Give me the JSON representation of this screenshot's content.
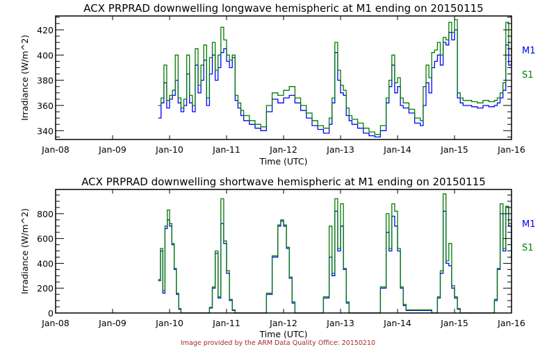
{
  "colors": {
    "M1": "#0000ff",
    "S1": "#007a00",
    "credit": "#a52a2a",
    "axis": "#000000"
  },
  "credit": "Image provided by the ARM Data Quality Office: 20150210",
  "chart_data": [
    {
      "type": "line",
      "title": "ACX PRPRAD downwelling longwave hemispheric at M1 ending on 20150115",
      "xlabel": "Time (UTC)",
      "ylabel": "Irradiance (W/m^2)",
      "xlim": [
        8,
        16
      ],
      "ylim": [
        333,
        431
      ],
      "x_ticks": [
        8,
        9,
        10,
        11,
        12,
        13,
        14,
        15,
        16
      ],
      "x_tick_labels": [
        "Jan-08",
        "Jan-09",
        "Jan-10",
        "Jan-11",
        "Jan-12",
        "Jan-13",
        "Jan-14",
        "Jan-15",
        "Jan-16"
      ],
      "y_ticks": [
        340,
        360,
        380,
        400,
        420
      ],
      "y_tick_labels": [
        "340",
        "360",
        "380",
        "400",
        "420"
      ],
      "y_minor_step": 5,
      "legend": [
        "M1",
        "S1"
      ],
      "legend_position": "right",
      "series": [
        {
          "name": "M1",
          "x": [
            9.8,
            9.85,
            9.9,
            9.95,
            10.0,
            10.05,
            10.1,
            10.15,
            10.2,
            10.25,
            10.3,
            10.35,
            10.4,
            10.45,
            10.5,
            10.55,
            10.6,
            10.65,
            10.7,
            10.75,
            10.8,
            10.85,
            10.9,
            10.95,
            11.0,
            11.05,
            11.1,
            11.15,
            11.2,
            11.25,
            11.3,
            11.4,
            11.5,
            11.6,
            11.7,
            11.8,
            11.9,
            12.0,
            12.1,
            12.2,
            12.3,
            12.4,
            12.5,
            12.6,
            12.7,
            12.8,
            12.85,
            12.9,
            12.95,
            13.0,
            13.05,
            13.1,
            13.15,
            13.2,
            13.3,
            13.4,
            13.5,
            13.6,
            13.7,
            13.8,
            13.85,
            13.9,
            13.95,
            14.0,
            14.05,
            14.1,
            14.2,
            14.3,
            14.4,
            14.45,
            14.5,
            14.55,
            14.6,
            14.65,
            14.7,
            14.75,
            14.8,
            14.85,
            14.9,
            14.95,
            15.0,
            15.05,
            15.1,
            15.15,
            15.2,
            15.3,
            15.4,
            15.5,
            15.6,
            15.7,
            15.75,
            15.8,
            15.85,
            15.9,
            15.95,
            16.0
          ],
          "y": [
            350,
            362,
            378,
            358,
            365,
            368,
            380,
            362,
            355,
            360,
            385,
            362,
            355,
            392,
            370,
            380,
            396,
            360,
            385,
            400,
            380,
            390,
            402,
            405,
            395,
            390,
            398,
            364,
            358,
            352,
            348,
            345,
            342,
            340,
            355,
            365,
            362,
            366,
            368,
            362,
            356,
            350,
            344,
            341,
            338,
            345,
            362,
            402,
            380,
            370,
            368,
            352,
            348,
            345,
            342,
            338,
            336,
            335,
            340,
            362,
            375,
            392,
            370,
            375,
            360,
            358,
            354,
            346,
            344,
            360,
            378,
            370,
            390,
            395,
            400,
            392,
            410,
            408,
            418,
            412,
            420,
            366,
            362,
            360,
            360,
            359,
            358,
            360,
            359,
            360,
            362,
            366,
            372,
            408,
            392,
            398
          ]
        },
        {
          "name": "S1",
          "x": [
            9.8,
            9.85,
            9.9,
            9.95,
            10.0,
            10.05,
            10.1,
            10.15,
            10.2,
            10.25,
            10.3,
            10.35,
            10.4,
            10.45,
            10.5,
            10.55,
            10.6,
            10.65,
            10.7,
            10.75,
            10.8,
            10.85,
            10.9,
            10.95,
            11.0,
            11.05,
            11.1,
            11.15,
            11.2,
            11.25,
            11.3,
            11.4,
            11.5,
            11.6,
            11.7,
            11.8,
            11.9,
            12.0,
            12.1,
            12.2,
            12.3,
            12.4,
            12.5,
            12.6,
            12.7,
            12.8,
            12.85,
            12.9,
            12.95,
            13.0,
            13.05,
            13.1,
            13.15,
            13.2,
            13.3,
            13.4,
            13.5,
            13.6,
            13.7,
            13.8,
            13.85,
            13.9,
            13.95,
            14.0,
            14.05,
            14.1,
            14.2,
            14.3,
            14.4,
            14.45,
            14.5,
            14.55,
            14.6,
            14.65,
            14.7,
            14.75,
            14.8,
            14.85,
            14.9,
            14.95,
            15.0,
            15.05,
            15.1,
            15.15,
            15.2,
            15.3,
            15.4,
            15.5,
            15.6,
            15.7,
            15.75,
            15.8,
            15.85,
            15.9,
            15.95,
            16.0
          ],
          "y": [
            360,
            366,
            392,
            364,
            368,
            372,
            400,
            366,
            358,
            365,
            400,
            368,
            360,
            405,
            376,
            392,
            408,
            366,
            398,
            410,
            388,
            400,
            422,
            412,
            400,
            396,
            400,
            368,
            362,
            356,
            352,
            348,
            345,
            343,
            360,
            370,
            368,
            372,
            375,
            366,
            360,
            354,
            348,
            344,
            342,
            350,
            366,
            410,
            388,
            376,
            372,
            358,
            352,
            349,
            346,
            342,
            339,
            337,
            344,
            366,
            380,
            400,
            378,
            382,
            366,
            362,
            357,
            350,
            348,
            375,
            392,
            382,
            402,
            404,
            410,
            400,
            414,
            412,
            426,
            418,
            428,
            370,
            366,
            364,
            364,
            363,
            362,
            364,
            363,
            364,
            366,
            370,
            378,
            426,
            405,
            402
          ]
        }
      ]
    },
    {
      "type": "line",
      "title": "ACX PRPRAD downwelling shortwave hemispheric at M1 ending on 20150115",
      "xlabel": "Time (UTC)",
      "ylabel": "Irradiance (W/m^2)",
      "xlim": [
        8,
        16
      ],
      "ylim": [
        0,
        995
      ],
      "x_ticks": [
        8,
        9,
        10,
        11,
        12,
        13,
        14,
        15,
        16
      ],
      "x_tick_labels": [
        "Jan-08",
        "Jan-09",
        "Jan-10",
        "Jan-11",
        "Jan-12",
        "Jan-13",
        "Jan-14",
        "Jan-15",
        "Jan-16"
      ],
      "y_ticks": [
        0,
        200,
        400,
        600,
        800
      ],
      "y_tick_labels": [
        "0",
        "200",
        "400",
        "600",
        "800"
      ],
      "y_minor_step": 50,
      "legend": [
        "M1",
        "S1"
      ],
      "legend_position": "right",
      "series": [
        {
          "name": "M1",
          "x": [
            9.8,
            9.84,
            9.88,
            9.92,
            9.96,
            10.0,
            10.04,
            10.08,
            10.12,
            10.16,
            10.2,
            10.6,
            10.7,
            10.75,
            10.8,
            10.85,
            10.9,
            10.95,
            11.0,
            11.05,
            11.1,
            11.15,
            11.2,
            11.6,
            11.7,
            11.8,
            11.9,
            11.95,
            12.0,
            12.05,
            12.1,
            12.15,
            12.2,
            12.6,
            12.7,
            12.8,
            12.85,
            12.9,
            12.95,
            13.0,
            13.05,
            13.1,
            13.15,
            13.6,
            13.7,
            13.8,
            13.85,
            13.9,
            13.95,
            14.0,
            14.05,
            14.1,
            14.15,
            14.6,
            14.7,
            14.75,
            14.8,
            14.85,
            14.9,
            14.95,
            15.0,
            15.05,
            15.1,
            15.15,
            15.6,
            15.7,
            15.75,
            15.8,
            15.85,
            15.9,
            15.95,
            16.0
          ],
          "y": [
            260,
            500,
            160,
            680,
            750,
            700,
            550,
            350,
            150,
            30,
            0,
            0,
            40,
            200,
            480,
            120,
            720,
            560,
            320,
            100,
            20,
            0,
            0,
            0,
            150,
            450,
            700,
            740,
            700,
            520,
            280,
            80,
            0,
            0,
            120,
            450,
            300,
            820,
            500,
            700,
            350,
            80,
            0,
            0,
            200,
            650,
            500,
            780,
            700,
            500,
            200,
            60,
            20,
            0,
            120,
            320,
            820,
            400,
            380,
            200,
            120,
            30,
            0,
            0,
            0,
            100,
            350,
            800,
            500,
            850,
            700,
            420
          ]
        },
        {
          "name": "S1",
          "x": [
            9.8,
            9.84,
            9.88,
            9.92,
            9.96,
            10.0,
            10.04,
            10.08,
            10.12,
            10.16,
            10.2,
            10.6,
            10.7,
            10.75,
            10.8,
            10.85,
            10.9,
            10.95,
            11.0,
            11.05,
            11.1,
            11.15,
            11.2,
            11.6,
            11.7,
            11.8,
            11.9,
            11.95,
            12.0,
            12.05,
            12.1,
            12.15,
            12.2,
            12.6,
            12.7,
            12.8,
            12.85,
            12.9,
            12.95,
            13.0,
            13.05,
            13.1,
            13.15,
            13.6,
            13.7,
            13.8,
            13.85,
            13.9,
            13.95,
            14.0,
            14.05,
            14.1,
            14.15,
            14.6,
            14.7,
            14.75,
            14.8,
            14.85,
            14.9,
            14.95,
            15.0,
            15.05,
            15.1,
            15.15,
            15.6,
            15.7,
            15.75,
            15.8,
            15.85,
            15.9,
            15.95,
            16.0
          ],
          "y": [
            270,
            520,
            180,
            700,
            830,
            720,
            560,
            360,
            160,
            35,
            0,
            0,
            45,
            210,
            500,
            130,
            920,
            580,
            340,
            110,
            25,
            0,
            0,
            0,
            160,
            460,
            710,
            750,
            710,
            530,
            290,
            90,
            0,
            0,
            130,
            700,
            320,
            920,
            520,
            880,
            360,
            90,
            0,
            0,
            210,
            800,
            520,
            880,
            820,
            520,
            210,
            70,
            25,
            0,
            130,
            340,
            960,
            420,
            560,
            220,
            130,
            35,
            0,
            0,
            0,
            110,
            360,
            880,
            520,
            860,
            720,
            440
          ]
        }
      ]
    }
  ]
}
